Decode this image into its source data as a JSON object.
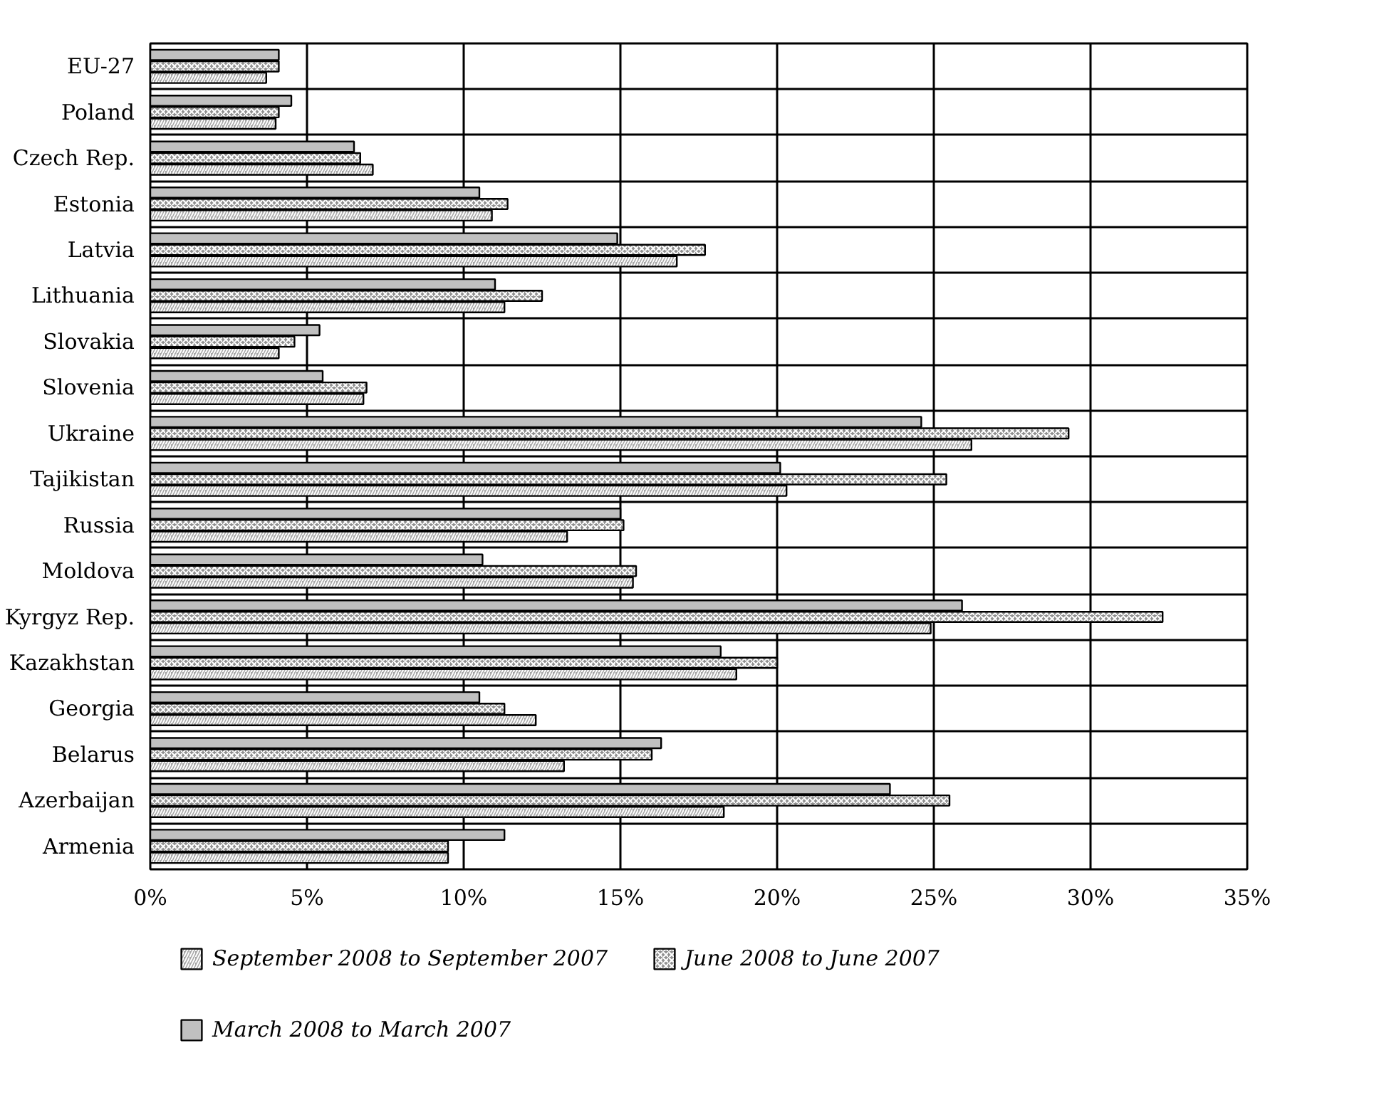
{
  "chart_data": {
    "type": "bar",
    "orientation": "horizontal",
    "categories": [
      "EU-27",
      "Poland",
      "Czech Rep.",
      "Estonia",
      "Latvia",
      "Lithuania",
      "Slovakia",
      "Slovenia",
      "Ukraine",
      "Tajikistan",
      "Russia",
      "Moldova",
      "Kyrgyz Rep.",
      "Kazakhstan",
      "Georgia",
      "Belarus",
      "Azerbaijan",
      "Armenia"
    ],
    "series": [
      {
        "name": "September 2008 to September 2007",
        "color": "#a8a8a8",
        "values": [
          3.7,
          4.0,
          7.1,
          10.9,
          16.8,
          11.3,
          4.1,
          6.8,
          26.2,
          20.3,
          13.3,
          15.4,
          24.9,
          18.7,
          12.3,
          13.2,
          18.3,
          9.5
        ]
      },
      {
        "name": "June 2008 to June 2007",
        "color": "#909090",
        "values": [
          4.1,
          4.1,
          6.7,
          11.4,
          17.7,
          12.5,
          4.6,
          6.9,
          29.3,
          25.4,
          15.1,
          15.5,
          32.3,
          20.0,
          11.3,
          16.0,
          25.5,
          9.5
        ]
      },
      {
        "name": "March 2008 to March 2007",
        "color": "#c0c0c0",
        "values": [
          4.1,
          4.5,
          6.5,
          10.5,
          14.9,
          11.0,
          5.4,
          5.5,
          24.6,
          20.1,
          15.0,
          10.6,
          25.9,
          18.2,
          10.5,
          16.3,
          23.6,
          11.3
        ]
      }
    ],
    "xlim": [
      0,
      35
    ],
    "xticks": [
      {
        "value": 0,
        "label": "0%"
      },
      {
        "value": 5,
        "label": "5%"
      },
      {
        "value": 10,
        "label": "10%"
      },
      {
        "value": 15,
        "label": "15%"
      },
      {
        "value": 20,
        "label": "20%"
      },
      {
        "value": 25,
        "label": "25%"
      },
      {
        "value": 30,
        "label": "30%"
      },
      {
        "value": 35,
        "label": "35%"
      }
    ],
    "grid": true,
    "legend": "bottom"
  }
}
